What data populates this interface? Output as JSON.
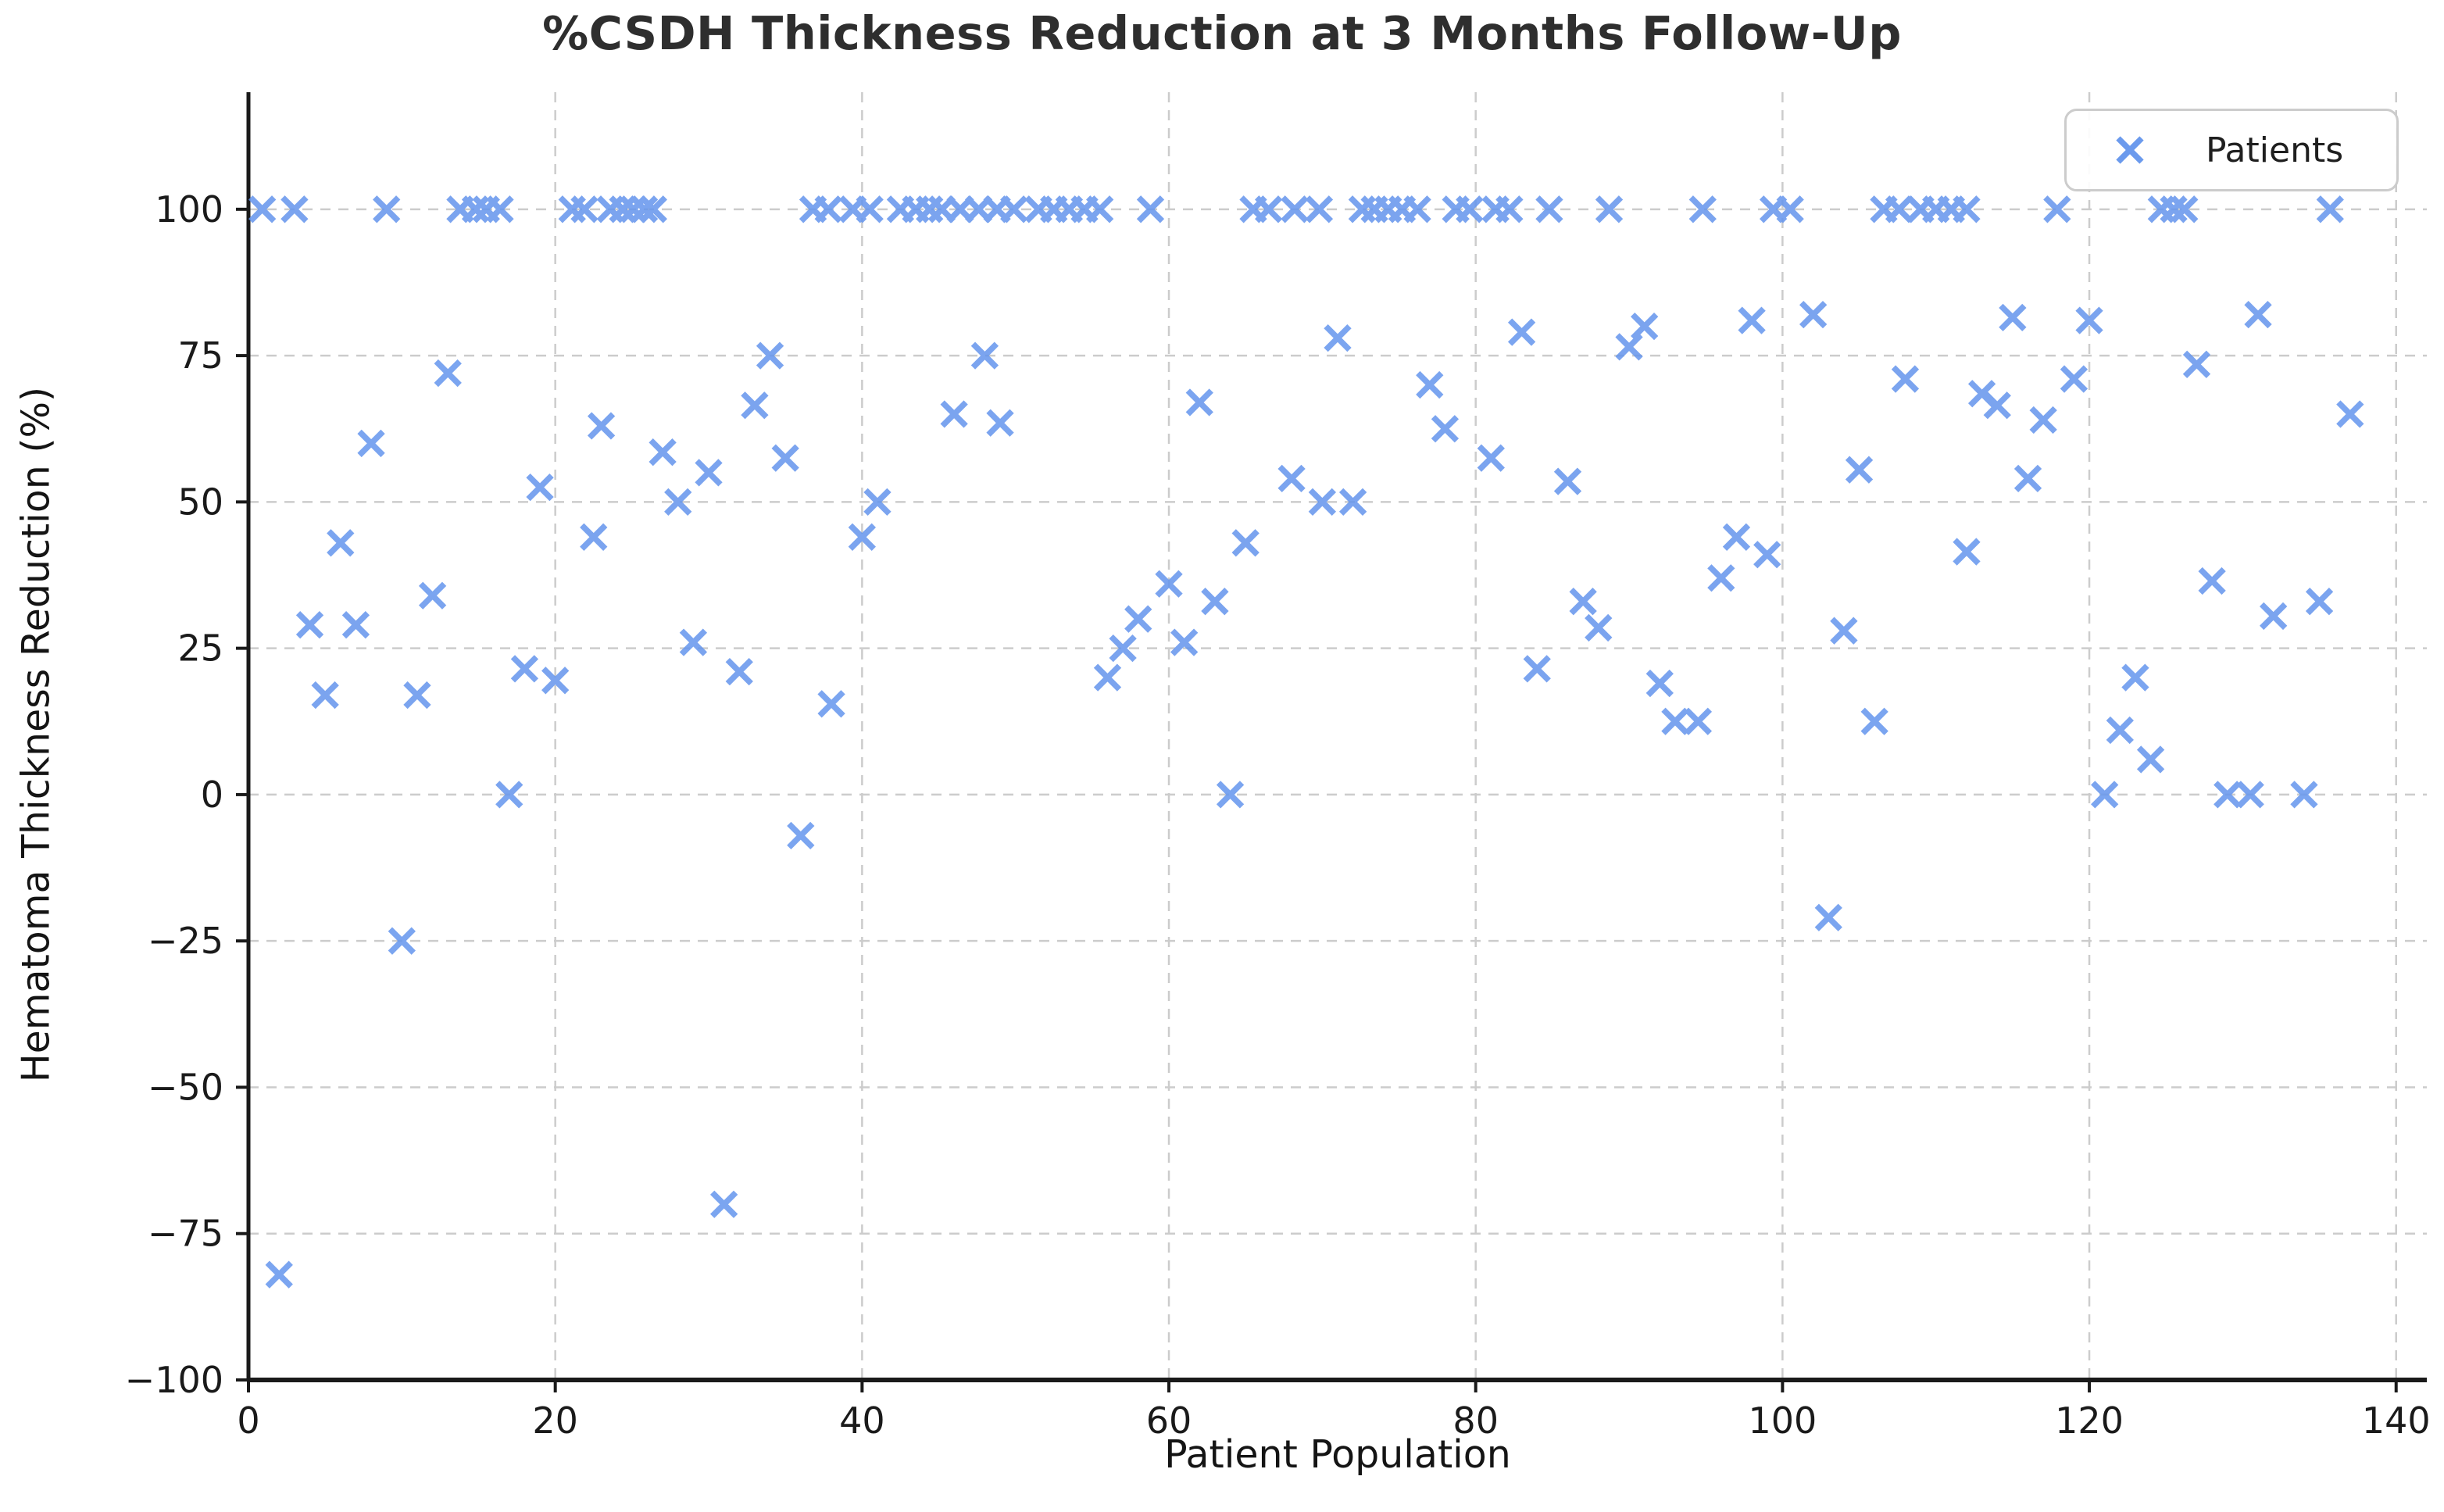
{
  "chart_data": {
    "type": "scatter",
    "title": "%CSDH Thickness Reduction at 3 Months Follow-Up",
    "xlabel": "Patient Population",
    "ylabel": "Hematoma Thickness Reduction (%)",
    "legend": {
      "label": "Patients",
      "position": "upper right"
    },
    "grid": true,
    "xlim": [
      0,
      142
    ],
    "ylim": [
      -100,
      120
    ],
    "xticks": [
      0,
      20,
      40,
      60,
      80,
      100,
      120,
      140
    ],
    "xtick_labels": [
      "0",
      "20",
      "40",
      "60",
      "80",
      "100",
      "120",
      "140"
    ],
    "yticks": [
      100,
      75,
      50,
      25,
      0,
      -25,
      -50,
      -75,
      -100
    ],
    "ytick_labels": [
      "100",
      "75",
      "50",
      "25",
      "0",
      "−25",
      "−50",
      "−75",
      "−100"
    ],
    "colors": {
      "marker": "#6495ED",
      "grid": "#cccccc",
      "spine": "#1a1a1a",
      "text": "#1a1a1a",
      "title": "#2e2e2e"
    },
    "marker": {
      "shape": "x",
      "half_size": 15,
      "stroke_width": 7.5,
      "opacity": 0.85
    },
    "series": [
      {
        "name": "Patients",
        "points": [
          [
            0.9,
            100
          ],
          [
            3,
            100
          ],
          [
            9,
            100
          ],
          [
            13.8,
            100
          ],
          [
            14.8,
            100
          ],
          [
            15.5,
            100
          ],
          [
            16.4,
            100
          ],
          [
            21.1,
            100
          ],
          [
            21.9,
            100
          ],
          [
            23.6,
            100
          ],
          [
            24.4,
            100
          ],
          [
            25.1,
            100
          ],
          [
            25.8,
            100
          ],
          [
            26.4,
            100
          ],
          [
            36.8,
            100
          ],
          [
            37.8,
            100
          ],
          [
            39.4,
            100
          ],
          [
            40.5,
            100
          ],
          [
            42.5,
            100
          ],
          [
            43.5,
            100
          ],
          [
            44.4,
            100
          ],
          [
            45.2,
            100
          ],
          [
            46.4,
            100
          ],
          [
            47.6,
            100
          ],
          [
            48.8,
            100
          ],
          [
            49.9,
            100
          ],
          [
            51.5,
            100
          ],
          [
            52.5,
            100
          ],
          [
            53.5,
            100
          ],
          [
            54.5,
            100
          ],
          [
            55.5,
            100
          ],
          [
            58.8,
            100
          ],
          [
            65.5,
            100
          ],
          [
            66.5,
            100
          ],
          [
            68.2,
            100
          ],
          [
            69.8,
            100
          ],
          [
            72.6,
            100
          ],
          [
            73.4,
            100
          ],
          [
            74.3,
            100
          ],
          [
            75.2,
            100
          ],
          [
            76.2,
            100
          ],
          [
            78.7,
            100
          ],
          [
            79.6,
            100
          ],
          [
            81.3,
            100
          ],
          [
            82.2,
            100
          ],
          [
            84.8,
            100
          ],
          [
            88.7,
            100
          ],
          [
            94.8,
            100
          ],
          [
            99.4,
            100
          ],
          [
            100.5,
            100
          ],
          [
            106.6,
            100
          ],
          [
            107.6,
            100
          ],
          [
            109,
            100
          ],
          [
            110,
            100
          ],
          [
            111,
            100
          ],
          [
            112,
            100
          ],
          [
            117.9,
            100
          ],
          [
            124.7,
            100
          ],
          [
            125.5,
            100
          ],
          [
            126.2,
            100
          ],
          [
            135.7,
            100
          ],
          [
            2,
            -82
          ],
          [
            31,
            -70
          ],
          [
            10,
            -25
          ],
          [
            103,
            -21
          ],
          [
            36,
            -7
          ],
          [
            17,
            0
          ],
          [
            64,
            0
          ],
          [
            121,
            0
          ],
          [
            129,
            0
          ],
          [
            130.5,
            0
          ],
          [
            134,
            0
          ],
          [
            124,
            6
          ],
          [
            122,
            11
          ],
          [
            93,
            12.5
          ],
          [
            94.5,
            12.5
          ],
          [
            106,
            12.5
          ],
          [
            38,
            15.5
          ],
          [
            5,
            17
          ],
          [
            11,
            17
          ],
          [
            92,
            19
          ],
          [
            20,
            19.5
          ],
          [
            56,
            20
          ],
          [
            123,
            20
          ],
          [
            32,
            21
          ],
          [
            18,
            21.5
          ],
          [
            84,
            21.5
          ],
          [
            57,
            25
          ],
          [
            29,
            26
          ],
          [
            61,
            26
          ],
          [
            104,
            28
          ],
          [
            88,
            28.5
          ],
          [
            4,
            29
          ],
          [
            7,
            29
          ],
          [
            58,
            30
          ],
          [
            132,
            30.5
          ],
          [
            63,
            33
          ],
          [
            87,
            33
          ],
          [
            135,
            33
          ],
          [
            12,
            34
          ],
          [
            60,
            36
          ],
          [
            128,
            36.5
          ],
          [
            96,
            37
          ],
          [
            99,
            41
          ],
          [
            112,
            41.5
          ],
          [
            6,
            43
          ],
          [
            65,
            43
          ],
          [
            22.5,
            44
          ],
          [
            40,
            44
          ],
          [
            97,
            44
          ],
          [
            28,
            50
          ],
          [
            41,
            50
          ],
          [
            70,
            50
          ],
          [
            72,
            50
          ],
          [
            19,
            52.5
          ],
          [
            86,
            53.5
          ],
          [
            68,
            54
          ],
          [
            116,
            54
          ],
          [
            30,
            55
          ],
          [
            105,
            55.5
          ],
          [
            35,
            57.5
          ],
          [
            81,
            57.5
          ],
          [
            27,
            58.5
          ],
          [
            8,
            60
          ],
          [
            78,
            62.5
          ],
          [
            23,
            63
          ],
          [
            49,
            63.5
          ],
          [
            117,
            64
          ],
          [
            46,
            65
          ],
          [
            137,
            65
          ],
          [
            33,
            66.5
          ],
          [
            114,
            66.5
          ],
          [
            62,
            67
          ],
          [
            113,
            68.5
          ],
          [
            77,
            70
          ],
          [
            108,
            71
          ],
          [
            119,
            71
          ],
          [
            13,
            72
          ],
          [
            127,
            73.5
          ],
          [
            34,
            75
          ],
          [
            48,
            75
          ],
          [
            71,
            78
          ],
          [
            83,
            79
          ],
          [
            90,
            76.5
          ],
          [
            91,
            80
          ],
          [
            98,
            81
          ],
          [
            120,
            81
          ],
          [
            115,
            81.5
          ],
          [
            102,
            82
          ],
          [
            131,
            82
          ]
        ]
      }
    ]
  }
}
